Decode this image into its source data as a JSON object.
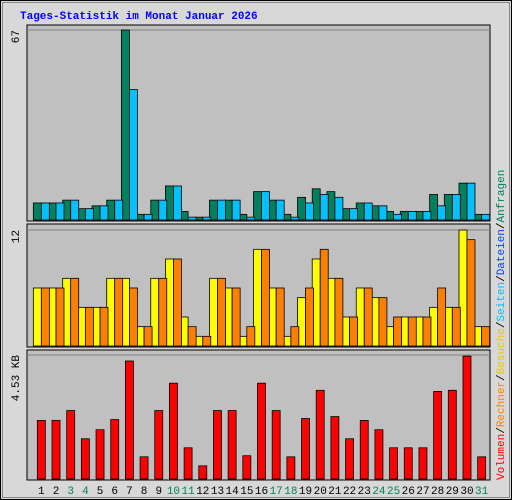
{
  "title": "Tages-Statistik im Monat Januar 2026",
  "legend": [
    {
      "label": "Volumen",
      "color": "#ff0000"
    },
    {
      "label": "Rechner",
      "color": "#ff8000"
    },
    {
      "label": "Besuche",
      "color": "#e8c800"
    },
    {
      "label": "Seiten",
      "color": "#00c0ff"
    },
    {
      "label": "Dateien",
      "color": "#0040ff"
    },
    {
      "label": "Anfragen",
      "color": "#00805c"
    }
  ],
  "legend_separator": "/",
  "chart_data": [
    {
      "type": "bar",
      "ylim": [
        0,
        67
      ],
      "yticks": [
        67
      ],
      "series": [
        {
          "color": "#00805c",
          "values": [
            6,
            6,
            7,
            4,
            5,
            7,
            67,
            2,
            7,
            12,
            3,
            1,
            7,
            7,
            2,
            10,
            7,
            2,
            8,
            11,
            10,
            4,
            6,
            5,
            3,
            3,
            3,
            9,
            9,
            13,
            2
          ]
        },
        {
          "color": "#00c0ff",
          "values": [
            6,
            6,
            7,
            4,
            5,
            7,
            46,
            2,
            7,
            12,
            1,
            1,
            7,
            7,
            1,
            10,
            7,
            1,
            6,
            9,
            8,
            4,
            6,
            5,
            2,
            3,
            3,
            5,
            9,
            13,
            2
          ]
        }
      ]
    },
    {
      "type": "bar",
      "ylim": [
        0,
        12
      ],
      "yticks": [
        12
      ],
      "series": [
        {
          "color": "#ffff00",
          "values": [
            6,
            6,
            7,
            4,
            4,
            7,
            7,
            2,
            7,
            9,
            3,
            1,
            7,
            6,
            1,
            10,
            6,
            1,
            5,
            9,
            7,
            3,
            6,
            5,
            2,
            3,
            3,
            4,
            4,
            12,
            2
          ]
        },
        {
          "color": "#ff8000",
          "values": [
            6,
            6,
            7,
            4,
            4,
            7,
            6,
            2,
            7,
            9,
            2,
            1,
            7,
            6,
            2,
            10,
            6,
            2,
            6,
            10,
            7,
            3,
            6,
            5,
            3,
            3,
            3,
            6,
            4,
            11,
            2
          ]
        }
      ]
    },
    {
      "type": "bar",
      "ylim": [
        0,
        4.53
      ],
      "yticks": [
        {
          "value": 4.53,
          "label": "4.53 KB"
        }
      ],
      "categories": [
        "1",
        "2",
        "3",
        "4",
        "5",
        "6",
        "7",
        "8",
        "9",
        "10",
        "11",
        "12",
        "13",
        "14",
        "15",
        "16",
        "17",
        "18",
        "19",
        "20",
        "21",
        "22",
        "23",
        "24",
        "25",
        "26",
        "27",
        "28",
        "29",
        "30",
        "31"
      ],
      "category_colors": [
        "#000000",
        "#000000",
        "#00805c",
        "#00805c",
        "#000000",
        "#000000",
        "#000000",
        "#000000",
        "#000000",
        "#00805c",
        "#00805c",
        "#000000",
        "#000000",
        "#000000",
        "#000000",
        "#000000",
        "#00805c",
        "#00805c",
        "#000000",
        "#000000",
        "#000000",
        "#000000",
        "#000000",
        "#00805c",
        "#00805c",
        "#000000",
        "#000000",
        "#000000",
        "#000000",
        "#000000",
        "#00805c"
      ],
      "series": [
        {
          "color": "#ff0000",
          "values": [
            2.14,
            2.14,
            2.5,
            1.47,
            1.8,
            2.17,
            4.31,
            0.81,
            2.5,
            3.5,
            1.14,
            0.48,
            2.5,
            2.5,
            0.85,
            3.5,
            2.5,
            0.81,
            2.21,
            3.24,
            2.28,
            1.47,
            2.14,
            1.8,
            1.14,
            1.14,
            1.14,
            3.2,
            3.24,
            4.49,
            0.81
          ]
        }
      ]
    }
  ]
}
